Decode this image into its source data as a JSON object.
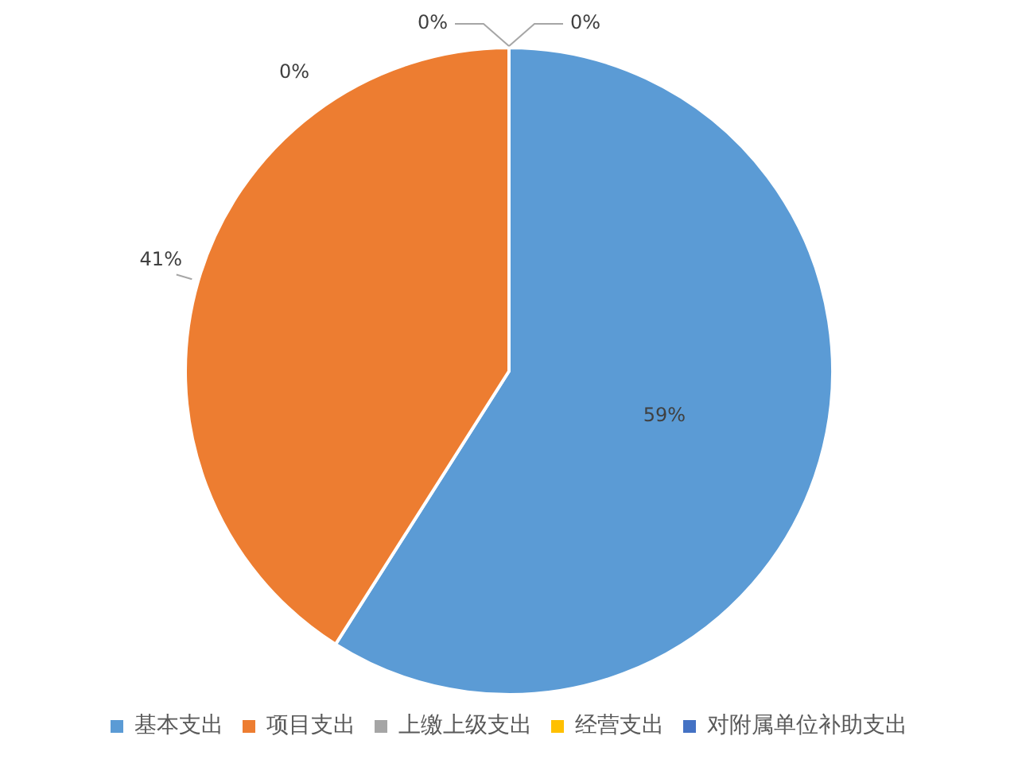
{
  "chart_data": {
    "type": "pie",
    "categories": [
      "基本支出",
      "项目支出",
      "上缴上级支出",
      "经营支出",
      "对附属单位补助支出"
    ],
    "values": [
      59,
      41,
      0,
      0,
      0
    ],
    "colors": [
      "#5b9bd5",
      "#ed7d31",
      "#a5a5a5",
      "#ffc000",
      "#4472c4"
    ],
    "value_labels": [
      "59%",
      "41%",
      "0%",
      "0%",
      "0%"
    ],
    "legend": "bottom"
  }
}
